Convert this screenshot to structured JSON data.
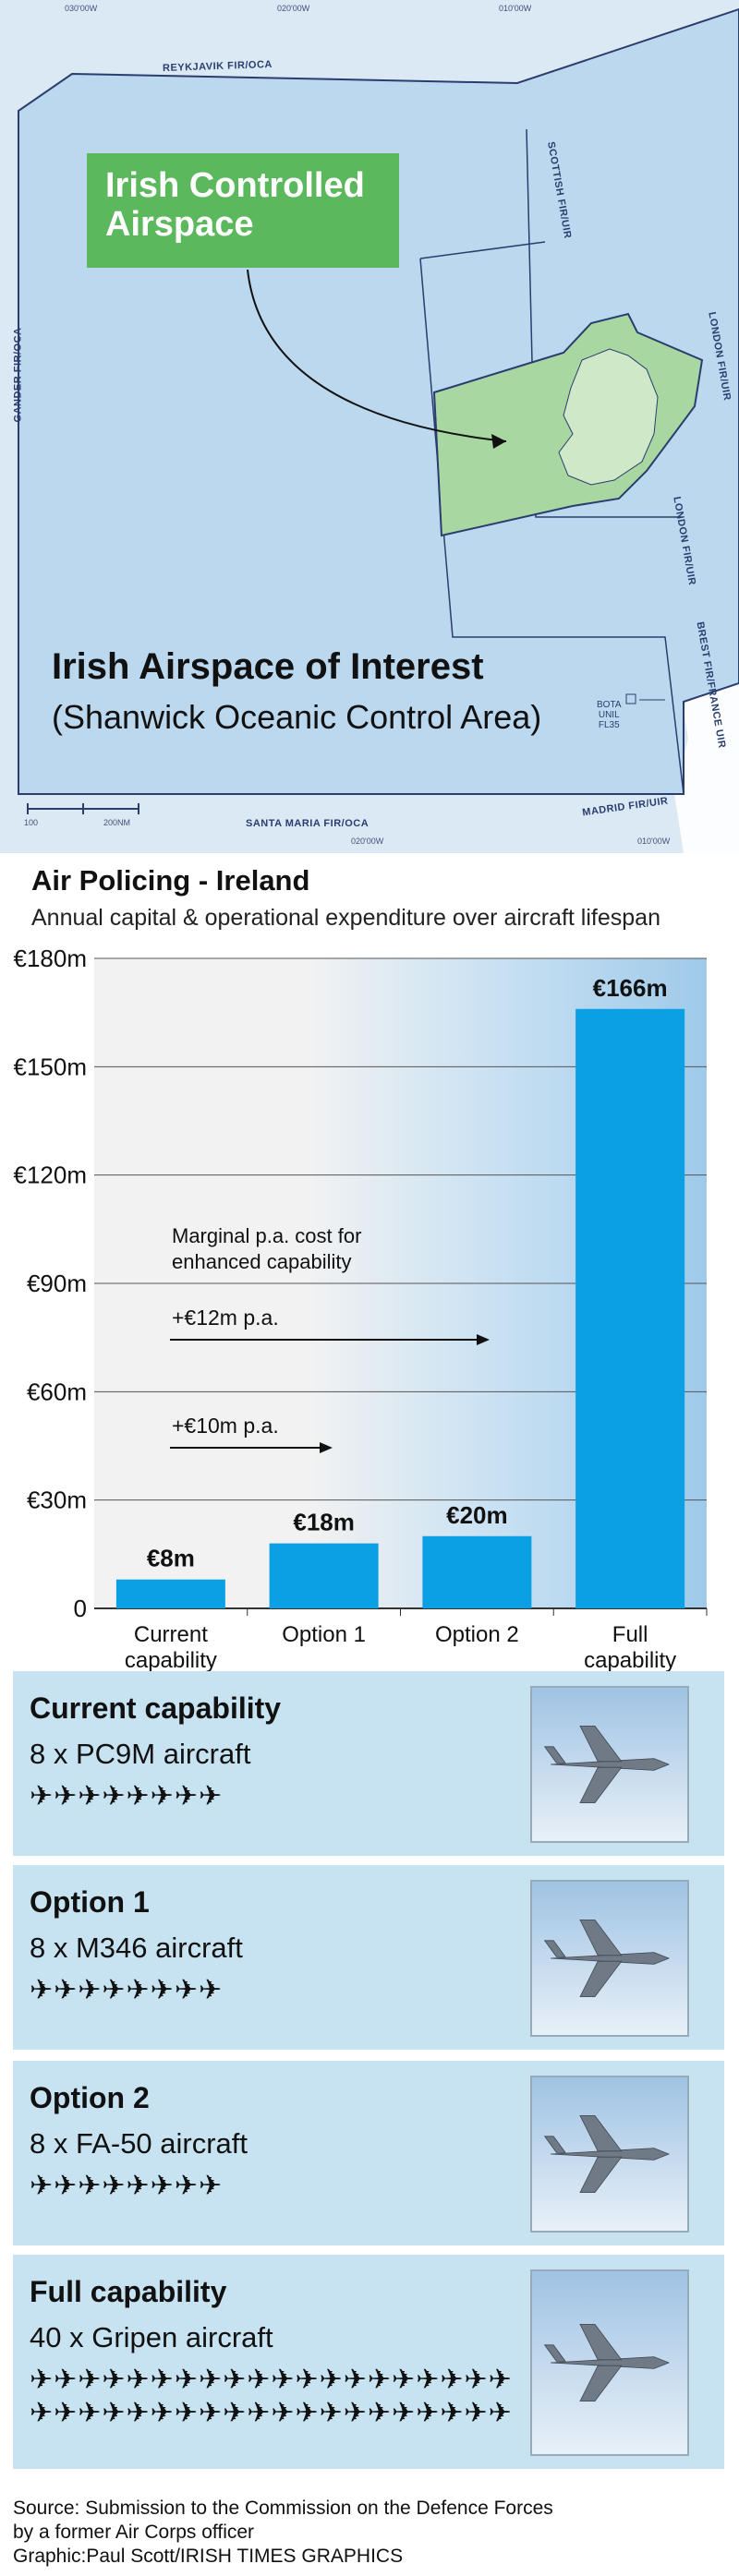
{
  "map": {
    "callout": [
      "Irish Controlled",
      "Airspace"
    ],
    "title": "Irish Airspace of Interest",
    "subtitle": "(Shanwick Oceanic Control Area)",
    "fir_labels": {
      "reykjavik": "REYKJAVIK FIR/OCA",
      "gander": "GANDER FIR/OCA",
      "scottish": "SCOTTISH FIR/UIR",
      "london_upper": "LONDON FIR/UIR",
      "london_lower": "LONDON FIR/UIR",
      "brest": "BREST FIR/FRANCE UIR",
      "madrid": "MADRID FIR/UIR",
      "santa_maria": "SANTA MARIA FIR/OCA"
    },
    "coords": {
      "top1": "030'00W",
      "top2": "020'00W",
      "top3": "010'00W",
      "bottom1": "020'00W",
      "bottom2": "010'00W"
    },
    "scale": {
      "a": "100",
      "b": "200NM"
    },
    "bota": [
      "BOTA",
      "UNIL",
      "FL35"
    ]
  },
  "chart_data": {
    "type": "bar",
    "title": "Air Policing - Ireland",
    "subtitle": "Annual capital & operational expenditure over aircraft lifespan",
    "categories": [
      [
        "Current",
        "capability"
      ],
      [
        "Option 1"
      ],
      [
        "Option 2"
      ],
      [
        "Full",
        "capability"
      ]
    ],
    "values": [
      8,
      18,
      20,
      166
    ],
    "bar_labels": [
      "€8m",
      "€18m",
      "€20m",
      "€166m"
    ],
    "ylim": [
      0,
      180
    ],
    "yticks": [
      0,
      30,
      60,
      90,
      120,
      150,
      180
    ],
    "ytick_labels": [
      "0",
      "€30m",
      "€60m",
      "€90m",
      "€120m",
      "€150m",
      "€180m"
    ],
    "grid": true,
    "bar_color": "#0ba0e3",
    "annotation": {
      "heading": [
        "Marginal p.a. cost for",
        "enhanced capability"
      ],
      "arrows": [
        "+€12m p.a.",
        "+€10m p.a."
      ]
    }
  },
  "cards": [
    {
      "title": "Current capability",
      "desc": "8 x PC9M aircraft",
      "count": 8
    },
    {
      "title": "Option 1",
      "desc": "8 x M346 aircraft",
      "count": 8
    },
    {
      "title": "Option 2",
      "desc": "8 x FA-50 aircraft",
      "count": 8
    },
    {
      "title": "Full capability",
      "desc": "40 x Gripen aircraft",
      "count": 40
    }
  ],
  "source": [
    "Source: Submission to the Commission on the Defence Forces",
    "by a former Air Corps officer",
    "Graphic:Paul Scott/IRISH TIMES GRAPHICS"
  ],
  "colors": {
    "irish_airspace": "#a9d7a1",
    "map_sea": "#bcd8ef",
    "card_bg": "#c7e3f1",
    "callout": "#5cb85c"
  }
}
